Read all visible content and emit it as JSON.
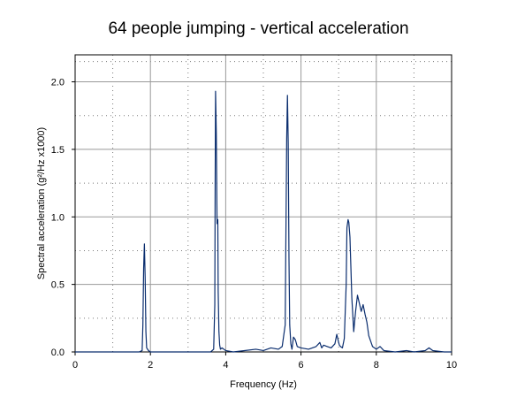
{
  "chart_data": {
    "type": "line",
    "title": "64 people jumping - vertical acceleration",
    "xlabel": "Frequency (Hz)",
    "ylabel": "Spectral acceleration (g²/Hz x1000)",
    "xlim": [
      0,
      10
    ],
    "ylim": [
      0,
      2.2
    ],
    "x_ticks": [
      "0",
      "2",
      "4",
      "6",
      "8",
      "10"
    ],
    "y_ticks": [
      "0.0",
      "0.5",
      "1.0",
      "1.5",
      "2.0"
    ],
    "grid": true,
    "legend": "none",
    "colors": {
      "series": "#0a2d6e",
      "grid_major": "#999999",
      "grid_minor": "#7a7a7a"
    },
    "series": [
      {
        "x": [
          0,
          1.7,
          1.78,
          1.8,
          1.82,
          1.84,
          1.86,
          1.88,
          1.9,
          1.95,
          2.0,
          3.6,
          3.68,
          3.71,
          3.72,
          3.73,
          3.75,
          3.77,
          3.79,
          3.8,
          3.82,
          3.84,
          3.86,
          3.9,
          4.0,
          4.2,
          4.5,
          4.8,
          5.0,
          5.2,
          5.4,
          5.5,
          5.58,
          5.6,
          5.62,
          5.64,
          5.66,
          5.68,
          5.7,
          5.73,
          5.76,
          5.8,
          5.85,
          5.9,
          6.0,
          6.2,
          6.4,
          6.5,
          6.55,
          6.6,
          6.7,
          6.8,
          6.9,
          6.95,
          7.0,
          7.02,
          7.05,
          7.1,
          7.15,
          7.2,
          7.22,
          7.25,
          7.27,
          7.3,
          7.35,
          7.4,
          7.45,
          7.5,
          7.55,
          7.6,
          7.65,
          7.7,
          7.75,
          7.8,
          7.85,
          7.9,
          8.0,
          8.1,
          8.2,
          8.5,
          8.8,
          9.0,
          9.3,
          9.4,
          9.5,
          9.8,
          10
        ],
        "y": [
          0.0,
          0.0,
          0.01,
          0.2,
          0.62,
          0.8,
          0.55,
          0.15,
          0.03,
          0.01,
          0.0,
          0.0,
          0.02,
          0.35,
          1.25,
          1.93,
          1.62,
          0.95,
          0.98,
          0.45,
          0.15,
          0.05,
          0.02,
          0.03,
          0.01,
          0.0,
          0.01,
          0.02,
          0.01,
          0.03,
          0.02,
          0.04,
          0.2,
          0.9,
          1.58,
          1.9,
          1.55,
          0.7,
          0.2,
          0.06,
          0.02,
          0.11,
          0.09,
          0.04,
          0.03,
          0.02,
          0.04,
          0.07,
          0.03,
          0.05,
          0.04,
          0.03,
          0.06,
          0.13,
          0.07,
          0.05,
          0.04,
          0.03,
          0.1,
          0.5,
          0.92,
          0.98,
          0.96,
          0.85,
          0.4,
          0.15,
          0.3,
          0.42,
          0.36,
          0.3,
          0.35,
          0.28,
          0.22,
          0.12,
          0.08,
          0.04,
          0.02,
          0.04,
          0.01,
          0.0,
          0.01,
          0.0,
          0.01,
          0.03,
          0.01,
          0.0,
          0.0
        ]
      }
    ]
  }
}
